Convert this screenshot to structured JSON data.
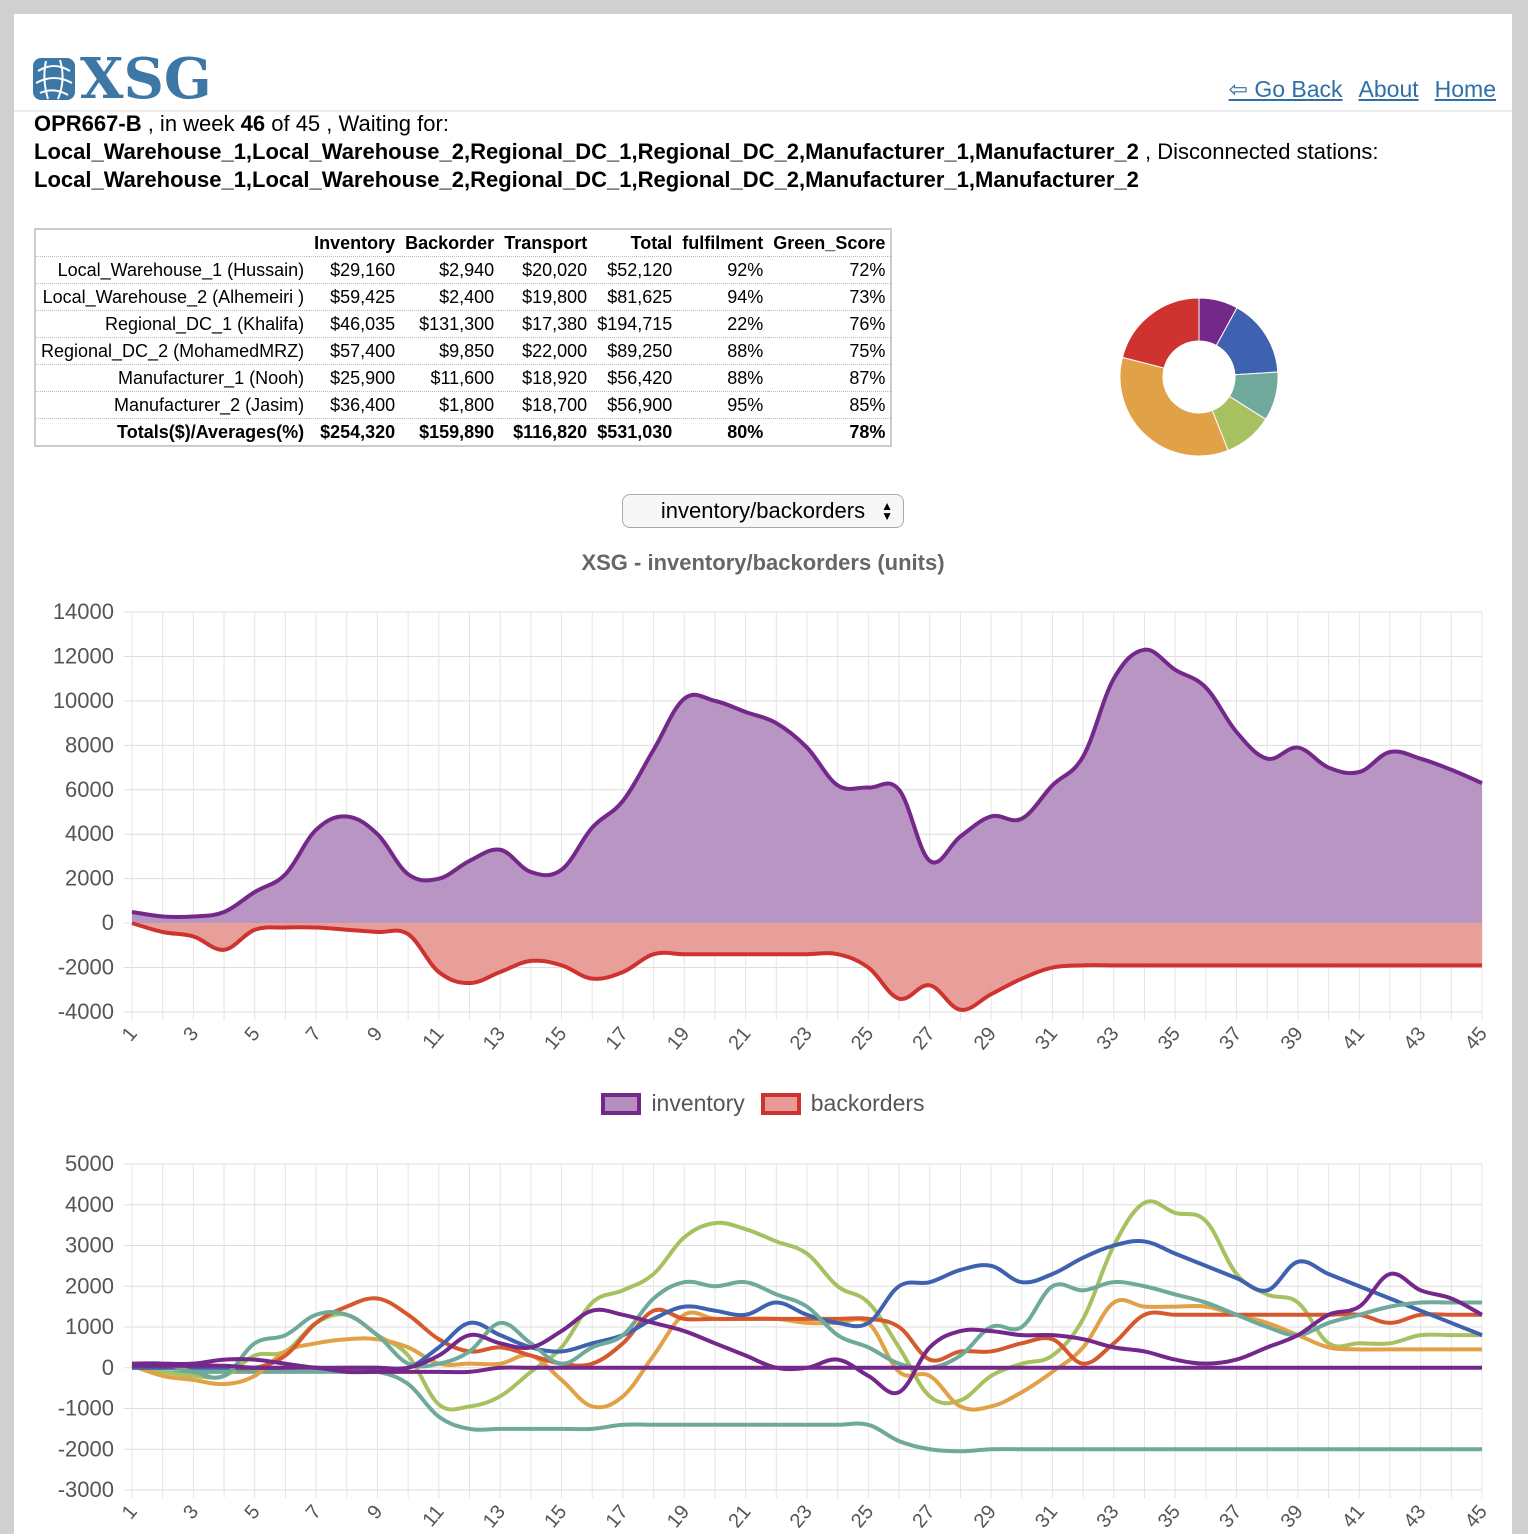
{
  "brand": {
    "logo_text": "XSG"
  },
  "nav": {
    "back": "⇦ Go Back",
    "about": "About",
    "home": "Home"
  },
  "status": {
    "game_id": "OPR667-B",
    "in_week_text": " , in week ",
    "week": "46",
    "of_text": " of 45 , Waiting for:",
    "waiting_for": "Local_Warehouse_1,Local_Warehouse_2,Regional_DC_1,Regional_DC_2,Manufacturer_1,Manufacturer_2",
    "disconnected_text": " , Disconnected stations:",
    "disconnected": "Local_Warehouse_1,Local_Warehouse_2,Regional_DC_1,Regional_DC_2,Manufacturer_1,Manufacturer_2"
  },
  "table": {
    "headers": [
      "",
      "Inventory",
      "Backorder",
      "Transport",
      "Total",
      "fulfilment",
      "Green_Score"
    ],
    "rows": [
      [
        "Local_Warehouse_1 (Hussain)",
        "$29,160",
        "$2,940",
        "$20,020",
        "$52,120",
        "92%",
        "72%"
      ],
      [
        "Local_Warehouse_2 (Alhemeiri )",
        "$59,425",
        "$2,400",
        "$19,800",
        "$81,625",
        "94%",
        "73%"
      ],
      [
        "Regional_DC_1 (Khalifa)",
        "$46,035",
        "$131,300",
        "$17,380",
        "$194,715",
        "22%",
        "76%"
      ],
      [
        "Regional_DC_2 (MohamedMRZ)",
        "$57,400",
        "$9,850",
        "$22,000",
        "$89,250",
        "88%",
        "75%"
      ],
      [
        "Manufacturer_1 (Nooh)",
        "$25,900",
        "$11,600",
        "$18,920",
        "$56,420",
        "88%",
        "87%"
      ],
      [
        "Manufacturer_2 (Jasim)",
        "$36,400",
        "$1,800",
        "$18,700",
        "$56,900",
        "95%",
        "85%"
      ]
    ],
    "totals": [
      "Totals($)/Averages(%)",
      "$254,320",
      "$159,890",
      "$116,820",
      "$531,030",
      "80%",
      "78%"
    ]
  },
  "selector": {
    "value": "inventory/backorders"
  },
  "chart_data": [
    {
      "type": "pie",
      "variant": "doughnut",
      "values": [
        8,
        16,
        10,
        10,
        35,
        21
      ],
      "colors": [
        "#74288a",
        "#3f62b0",
        "#6fa99b",
        "#a7c160",
        "#e1a146",
        "#cf3330"
      ]
    },
    {
      "type": "area",
      "title": "XSG - inventory/backorders (units)",
      "x": [
        1,
        2,
        3,
        4,
        5,
        6,
        7,
        8,
        9,
        10,
        11,
        12,
        13,
        14,
        15,
        16,
        17,
        18,
        19,
        20,
        21,
        22,
        23,
        24,
        25,
        26,
        27,
        28,
        29,
        30,
        31,
        32,
        33,
        34,
        35,
        36,
        37,
        38,
        39,
        40,
        41,
        42,
        43,
        44,
        45
      ],
      "xticks": [
        1,
        3,
        5,
        7,
        9,
        11,
        13,
        15,
        17,
        19,
        21,
        23,
        25,
        27,
        29,
        31,
        33,
        35,
        37,
        39,
        41,
        43,
        45
      ],
      "ylim": [
        -4000,
        14000
      ],
      "yticks": [
        -4000,
        -2000,
        0,
        2000,
        4000,
        6000,
        8000,
        10000,
        12000,
        14000
      ],
      "grid": true,
      "legend_position": "bottom",
      "series": [
        {
          "name": "inventory",
          "color": "#74288a",
          "fill": "#b48fbf",
          "values": [
            500,
            300,
            300,
            500,
            1400,
            2200,
            4200,
            4800,
            4000,
            2200,
            2000,
            2800,
            3300,
            2300,
            2400,
            4300,
            5500,
            7800,
            10100,
            10000,
            9500,
            9000,
            7900,
            6200,
            6100,
            6000,
            2800,
            3900,
            4800,
            4700,
            6200,
            7500,
            11000,
            12300,
            11400,
            10600,
            8600,
            7400,
            7900,
            7000,
            6800,
            7700,
            7400,
            6900,
            6300
          ]
        },
        {
          "name": "backorders",
          "color": "#cf3330",
          "fill": "#e89a94",
          "values": [
            0,
            -400,
            -600,
            -1200,
            -300,
            -200,
            -200,
            -300,
            -400,
            -500,
            -2200,
            -2700,
            -2200,
            -1700,
            -1900,
            -2500,
            -2200,
            -1400,
            -1400,
            -1400,
            -1400,
            -1400,
            -1400,
            -1400,
            -2000,
            -3400,
            -2800,
            -3900,
            -3200,
            -2500,
            -2000,
            -1900,
            -1900,
            -1900,
            -1900,
            -1900,
            -1900,
            -1900,
            -1900,
            -1900,
            -1900,
            -1900,
            -1900,
            -1900,
            -1900
          ]
        }
      ]
    },
    {
      "type": "line",
      "x": [
        1,
        2,
        3,
        4,
        5,
        6,
        7,
        8,
        9,
        10,
        11,
        12,
        13,
        14,
        15,
        16,
        17,
        18,
        19,
        20,
        21,
        22,
        23,
        24,
        25,
        26,
        27,
        28,
        29,
        30,
        31,
        32,
        33,
        34,
        35,
        36,
        37,
        38,
        39,
        40,
        41,
        42,
        43,
        44,
        45
      ],
      "xticks": [
        1,
        3,
        5,
        7,
        9,
        11,
        13,
        15,
        17,
        19,
        21,
        23,
        25,
        27,
        29,
        31,
        33,
        35,
        37,
        39,
        41,
        43,
        45
      ],
      "ylim": [
        -3000,
        5000
      ],
      "yticks": [
        -3000,
        -2000,
        -1000,
        0,
        1000,
        2000,
        3000,
        4000,
        5000
      ],
      "grid": true,
      "series": [
        {
          "color": "#6fa99b",
          "values": [
            100,
            -100,
            -100,
            -100,
            -100,
            -100,
            -100,
            -100,
            -100,
            -400,
            -1200,
            -1500,
            -1500,
            -1500,
            -1500,
            -1500,
            -1400,
            -1400,
            -1400,
            -1400,
            -1400,
            -1400,
            -1400,
            -1400,
            -1400,
            -1800,
            -2000,
            -2050,
            -2000,
            -2000,
            -2000,
            -2000,
            -2000,
            -2000,
            -2000,
            -2000,
            -2000,
            -2000,
            -2000,
            -2000,
            -2000,
            -2000,
            -2000,
            -2000,
            -2000
          ]
        },
        {
          "color": "#a7c160",
          "values": [
            100,
            -100,
            -200,
            -200,
            300,
            400,
            1100,
            1300,
            800,
            300,
            -900,
            -950,
            -700,
            -100,
            500,
            1600,
            1900,
            2300,
            3200,
            3550,
            3400,
            3100,
            2800,
            2000,
            1600,
            500,
            -700,
            -800,
            -200,
            100,
            300,
            1200,
            3000,
            4050,
            3800,
            3600,
            2300,
            1800,
            1600,
            600,
            600,
            600,
            800,
            800,
            800
          ]
        },
        {
          "color": "#e1a146",
          "values": [
            50,
            -200,
            -300,
            -400,
            -200,
            400,
            600,
            700,
            700,
            500,
            100,
            100,
            100,
            300,
            -300,
            -950,
            -700,
            300,
            1300,
            1200,
            1200,
            1200,
            1100,
            1100,
            1100,
            -100,
            -200,
            -950,
            -950,
            -600,
            -100,
            500,
            1600,
            1500,
            1500,
            1500,
            1300,
            1100,
            800,
            500,
            450,
            450,
            450,
            450,
            450
          ]
        },
        {
          "color": "#d6582e",
          "values": [
            0,
            0,
            0,
            0,
            0,
            300,
            1100,
            1500,
            1700,
            1300,
            700,
            400,
            500,
            300,
            100,
            100,
            600,
            1400,
            1200,
            1200,
            1200,
            1200,
            1200,
            1200,
            1200,
            1000,
            200,
            400,
            400,
            600,
            700,
            100,
            600,
            1300,
            1300,
            1300,
            1300,
            1300,
            1300,
            1300,
            1300,
            1100,
            1300,
            1300,
            1300
          ]
        },
        {
          "color": "#3f62b0",
          "values": [
            0,
            0,
            0,
            0,
            0,
            0,
            0,
            0,
            0,
            0,
            500,
            1100,
            800,
            500,
            400,
            600,
            800,
            1200,
            1500,
            1400,
            1300,
            1600,
            1300,
            1100,
            1100,
            2000,
            2100,
            2400,
            2500,
            2100,
            2300,
            2700,
            3000,
            3100,
            2800,
            2500,
            2200,
            1900,
            2600,
            2300,
            2000,
            1700,
            1400,
            1100,
            800
          ]
        },
        {
          "color": "#6fa99b",
          "values": [
            100,
            100,
            -100,
            -200,
            600,
            800,
            1300,
            1300,
            800,
            100,
            100,
            400,
            1100,
            600,
            100,
            500,
            800,
            1700,
            2100,
            2000,
            2100,
            1800,
            1500,
            800,
            500,
            100,
            0,
            300,
            1000,
            1000,
            2000,
            1900,
            2100,
            2000,
            1800,
            1600,
            1300,
            1000,
            800,
            1100,
            1300,
            1500,
            1600,
            1600,
            1600
          ]
        },
        {
          "color": "#74288a",
          "values": [
            100,
            100,
            100,
            200,
            200,
            100,
            0,
            0,
            0,
            0,
            300,
            800,
            600,
            500,
            900,
            1400,
            1300,
            1100,
            900,
            600,
            300,
            0,
            0,
            200,
            -200,
            -600,
            500,
            900,
            900,
            800,
            800,
            700,
            500,
            400,
            200,
            100,
            200,
            500,
            800,
            1300,
            1500,
            2300,
            1900,
            1700,
            1300
          ]
        },
        {
          "color": "#74288a",
          "values": [
            50,
            50,
            50,
            50,
            0,
            0,
            0,
            -100,
            -100,
            -100,
            -100,
            -100,
            0,
            0,
            0,
            0,
            0,
            0,
            0,
            0,
            0,
            0,
            0,
            0,
            0,
            0,
            0,
            0,
            0,
            0,
            0,
            0,
            0,
            0,
            0,
            0,
            0,
            0,
            0,
            0,
            0,
            0,
            0,
            0,
            0
          ]
        }
      ]
    }
  ]
}
